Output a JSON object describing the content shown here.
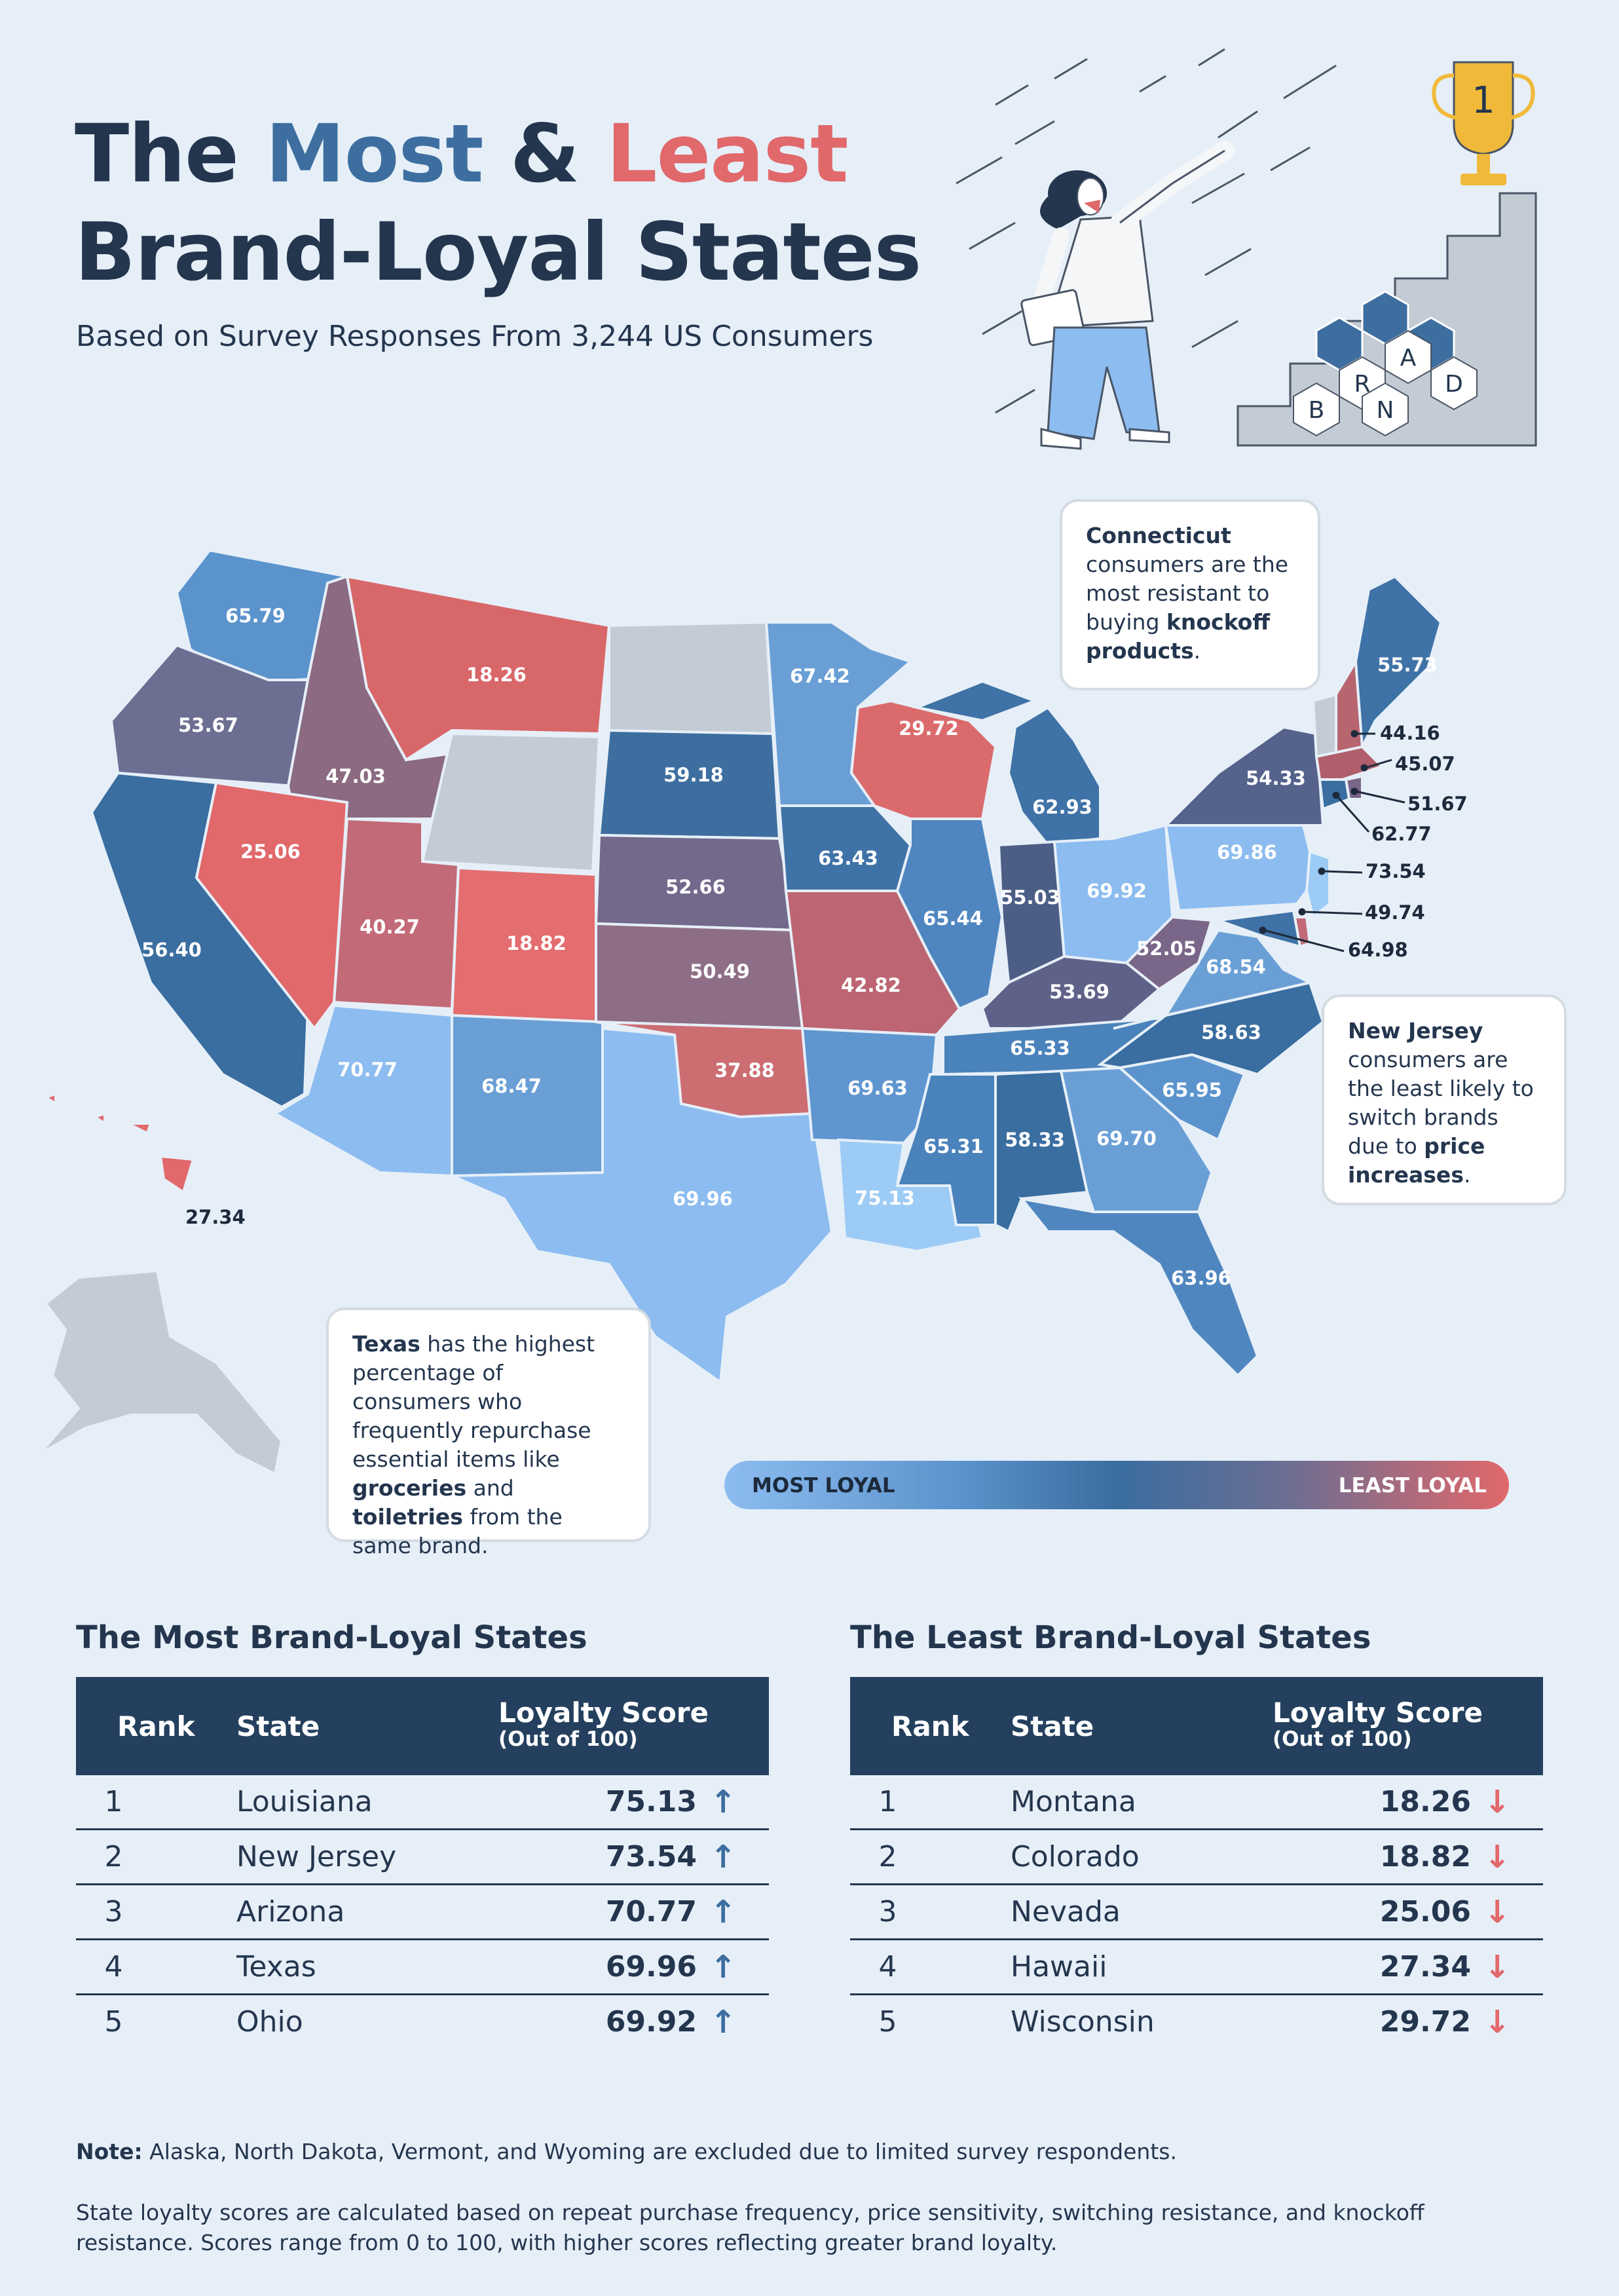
{
  "header": {
    "title_line1_a": "The ",
    "title_line1_most": "Most",
    "title_line1_amp": " & ",
    "title_line1_least": "Least",
    "title_line2": "Brand-Loyal States",
    "subtitle": "Based on Survey Responses From 3,244 US Consumers"
  },
  "illustration": {
    "trophy_number": "1",
    "hex_letters": [
      "B",
      "R",
      "A",
      "N",
      "D"
    ]
  },
  "map": {
    "colors": {
      "most_loyal": "#8cbcf0",
      "mid": "#3a6da0",
      "least_loyal": "#e1686b",
      "excluded": "#c3cbd4"
    },
    "states": [
      {
        "state": "Washington",
        "score": "65.79"
      },
      {
        "state": "Oregon",
        "score": "53.67"
      },
      {
        "state": "California",
        "score": "56.40"
      },
      {
        "state": "Idaho",
        "score": "47.03"
      },
      {
        "state": "Nevada",
        "score": "25.06"
      },
      {
        "state": "Montana",
        "score": "18.26"
      },
      {
        "state": "Utah",
        "score": "40.27"
      },
      {
        "state": "Arizona",
        "score": "70.77"
      },
      {
        "state": "Colorado",
        "score": "18.82"
      },
      {
        "state": "New Mexico",
        "score": "68.47"
      },
      {
        "state": "South Dakota",
        "score": "59.18"
      },
      {
        "state": "Nebraska",
        "score": "52.66"
      },
      {
        "state": "Kansas",
        "score": "50.49"
      },
      {
        "state": "Oklahoma",
        "score": "37.88"
      },
      {
        "state": "Texas",
        "score": "69.96"
      },
      {
        "state": "Minnesota",
        "score": "67.42"
      },
      {
        "state": "Iowa",
        "score": "63.43"
      },
      {
        "state": "Missouri",
        "score": "42.82"
      },
      {
        "state": "Arkansas",
        "score": "69.63"
      },
      {
        "state": "Louisiana",
        "score": "75.13"
      },
      {
        "state": "Wisconsin",
        "score": "29.72"
      },
      {
        "state": "Illinois",
        "score": "65.44"
      },
      {
        "state": "Michigan",
        "score": "62.93"
      },
      {
        "state": "Indiana",
        "score": "55.03"
      },
      {
        "state": "Ohio",
        "score": "69.92"
      },
      {
        "state": "Kentucky",
        "score": "53.69"
      },
      {
        "state": "Tennessee",
        "score": "65.33"
      },
      {
        "state": "Mississippi",
        "score": "65.31"
      },
      {
        "state": "Alabama",
        "score": "58.33"
      },
      {
        "state": "Georgia",
        "score": "69.70"
      },
      {
        "state": "Florida",
        "score": "63.96"
      },
      {
        "state": "South Carolina",
        "score": "65.95"
      },
      {
        "state": "North Carolina",
        "score": "58.63"
      },
      {
        "state": "Virginia",
        "score": "68.54"
      },
      {
        "state": "West Virginia",
        "score": "52.05"
      },
      {
        "state": "Pennsylvania",
        "score": "69.86"
      },
      {
        "state": "New York",
        "score": "54.33"
      },
      {
        "state": "Maine",
        "score": "55.73"
      },
      {
        "state": "New Hampshire",
        "score": "44.16"
      },
      {
        "state": "Massachusetts",
        "score": "45.07"
      },
      {
        "state": "Rhode Island",
        "score": "51.67"
      },
      {
        "state": "Connecticut",
        "score": "62.77"
      },
      {
        "state": "New Jersey",
        "score": "73.54"
      },
      {
        "state": "Delaware",
        "score": "49.74"
      },
      {
        "state": "Maryland",
        "score": "64.98"
      },
      {
        "state": "Hawaii",
        "score": "27.34"
      }
    ]
  },
  "callouts": {
    "connecticut": {
      "p1": "Connecticut",
      "p2": " consumers are the most resistant to buying ",
      "p3": "knockoff products",
      "p4": "."
    },
    "new_jersey": {
      "p1": "New Jersey",
      "p2": " consumers are the least likely to switch brands due to ",
      "p3": "price increases",
      "p4": "."
    },
    "texas": {
      "p1": "Texas",
      "p2": " has the highest percentage of consumers who frequently repurchase essential items like ",
      "p3": "groceries",
      "p4": " and ",
      "p5": "toiletries",
      "p6": " from the same brand."
    }
  },
  "legend": {
    "left": "MOST LOYAL",
    "right": "LEAST LOYAL"
  },
  "most_table": {
    "title": "The Most Brand-Loyal States",
    "col_rank": "Rank",
    "col_state": "State",
    "col_score": "Loyalty Score",
    "col_score_sub": "(Out of 100)",
    "rows": [
      {
        "rank": "1",
        "state": "Louisiana",
        "score": "75.13"
      },
      {
        "rank": "2",
        "state": "New Jersey",
        "score": "73.54"
      },
      {
        "rank": "3",
        "state": "Arizona",
        "score": "70.77"
      },
      {
        "rank": "4",
        "state": "Texas",
        "score": "69.96"
      },
      {
        "rank": "5",
        "state": "Ohio",
        "score": "69.92"
      }
    ]
  },
  "least_table": {
    "title": "The Least Brand-Loyal States",
    "col_rank": "Rank",
    "col_state": "State",
    "col_score": "Loyalty Score",
    "col_score_sub": "(Out of 100)",
    "rows": [
      {
        "rank": "1",
        "state": "Montana",
        "score": "18.26"
      },
      {
        "rank": "2",
        "state": "Colorado",
        "score": "18.82"
      },
      {
        "rank": "3",
        "state": "Nevada",
        "score": "25.06"
      },
      {
        "rank": "4",
        "state": "Hawaii",
        "score": "27.34"
      },
      {
        "rank": "5",
        "state": "Wisconsin",
        "score": "29.72"
      }
    ]
  },
  "arrows": {
    "up": "↑",
    "down": "↓",
    "up_color": "#3d6e9f",
    "down_color": "#e1686b"
  },
  "notes": {
    "note_label": "Note:",
    "note_text": " Alaska, North Dakota, Vermont, and Wyoming are excluded due to limited survey respondents.",
    "method": "State loyalty scores are calculated based on repeat purchase frequency, price sensitivity, switching resistance, and knockoff resistance. Scores range from 0 to 100, with higher scores reflecting greater brand loyalty."
  }
}
